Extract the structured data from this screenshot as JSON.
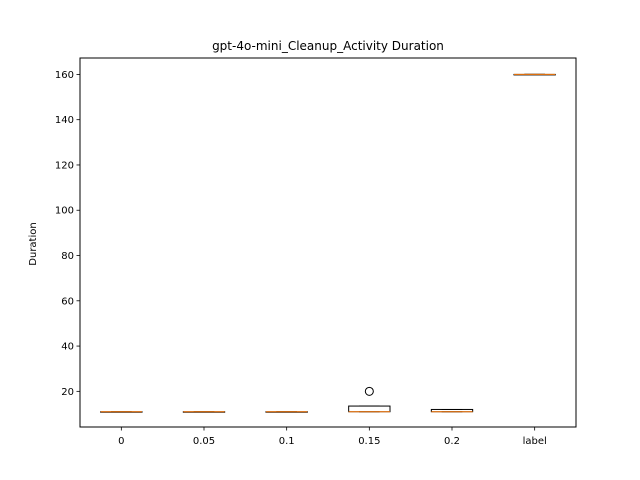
{
  "chart_data": {
    "type": "box",
    "title": "gpt-4o-mini_Cleanup_Activity Duration",
    "xlabel": "",
    "ylabel": "Duration",
    "ylim": [
      4.25,
      167.25
    ],
    "yticks": [
      20,
      40,
      60,
      80,
      100,
      120,
      140,
      160
    ],
    "grid": false,
    "categories": [
      "0",
      "0.05",
      "0.1",
      "0.15",
      "0.2",
      "label"
    ],
    "boxes": [
      {
        "category": "0",
        "whisker_low": 11,
        "q1": 11,
        "median": 11,
        "q3": 11,
        "whisker_high": 11,
        "outliers": []
      },
      {
        "category": "0.05",
        "whisker_low": 11,
        "q1": 11,
        "median": 11,
        "q3": 11,
        "whisker_high": 11,
        "outliers": []
      },
      {
        "category": "0.1",
        "whisker_low": 11,
        "q1": 11,
        "median": 11,
        "q3": 11,
        "whisker_high": 11,
        "outliers": []
      },
      {
        "category": "0.15",
        "whisker_low": 11,
        "q1": 11,
        "median": 11,
        "q3": 13.5,
        "whisker_high": 13.5,
        "outliers": [
          20
        ]
      },
      {
        "category": "0.2",
        "whisker_low": 11,
        "q1": 11,
        "median": 11,
        "q3": 12,
        "whisker_high": 12,
        "outliers": []
      },
      {
        "category": "label",
        "whisker_low": 160,
        "q1": 160,
        "median": 160,
        "q3": 160,
        "whisker_high": 160,
        "outliers": []
      }
    ],
    "colors": {
      "box": "#000000",
      "median": "#ff7f0e",
      "outlier": "#000000",
      "background": "#ffffff"
    }
  }
}
